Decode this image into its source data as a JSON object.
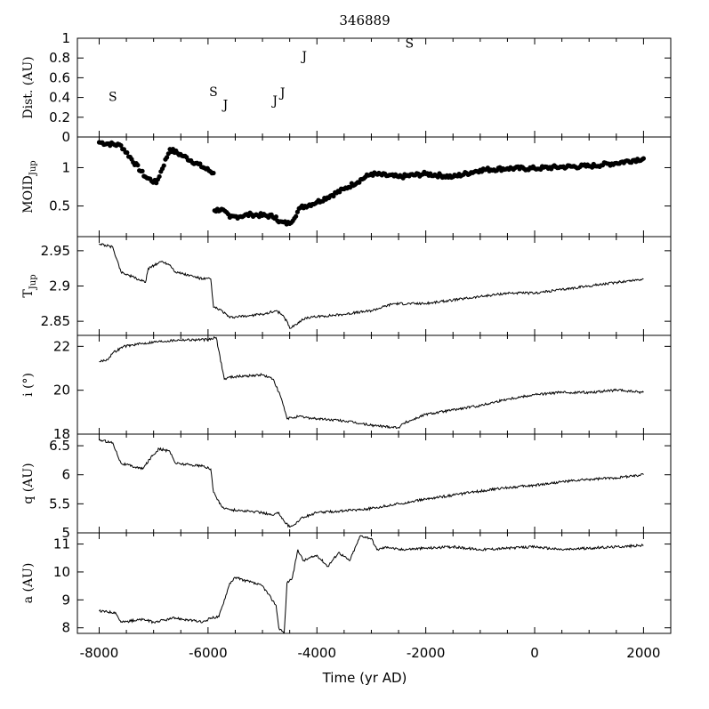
{
  "chart_data": {
    "type": "line",
    "title": "346889",
    "xlabel": "Time (yr AD)",
    "xlim": [
      -8400,
      2500
    ],
    "xticks": [
      -8000,
      -6000,
      -4000,
      -2000,
      0,
      2000
    ],
    "xtick_labels": [
      "-8000",
      "-6000",
      "-4000",
      "-2000",
      "0",
      "2000"
    ],
    "panels": [
      {
        "id": "dist",
        "ylabel": "Dist. (AU)",
        "kind": "encounters",
        "ylim": [
          0,
          1
        ],
        "yticks": [
          0,
          0.2,
          0.4,
          0.6,
          0.8,
          1
        ],
        "ytick_labels": [
          "0",
          "0.2",
          "0.4",
          "0.6",
          "0.8",
          "1"
        ],
        "encounters": [
          {
            "label": "S",
            "x": -7750,
            "y": 0.41
          },
          {
            "label": "S",
            "x": -5900,
            "y": 0.46
          },
          {
            "label": "J",
            "x": -5680,
            "y": 0.33
          },
          {
            "label": "J",
            "x": -4770,
            "y": 0.37
          },
          {
            "label": "J",
            "x": -4630,
            "y": 0.45
          },
          {
            "label": "J",
            "x": -4230,
            "y": 0.82
          },
          {
            "label": "S",
            "x": -2300,
            "y": 0.95
          }
        ]
      },
      {
        "id": "moid",
        "ylabel": "MOID",
        "ylabel_sub": "Jup",
        "kind": "scatter",
        "ylim": [
          0.1,
          1.4
        ],
        "yticks": [
          0.5,
          1
        ],
        "ytick_labels": [
          "0.5",
          "1"
        ],
        "x": [
          -8000,
          -7600,
          -7150,
          -6950,
          -6700,
          -6450,
          -5900,
          -5880,
          -5750,
          -5600,
          -5200,
          -4750,
          -4700,
          -4500,
          -4300,
          -4000,
          -3500,
          -3000,
          -2500,
          -2000,
          -1500,
          -1000,
          -500,
          0,
          500,
          1000,
          1500,
          2000
        ],
        "y": [
          1.33,
          1.29,
          0.88,
          0.8,
          1.24,
          1.15,
          0.93,
          0.44,
          0.46,
          0.35,
          0.39,
          0.36,
          0.29,
          0.27,
          0.48,
          0.55,
          0.72,
          0.92,
          0.88,
          0.92,
          0.88,
          0.97,
          0.99,
          0.99,
          1.01,
          1.02,
          1.06,
          1.12
        ]
      },
      {
        "id": "tjup",
        "ylabel": "T",
        "ylabel_sub": "Jup",
        "kind": "line",
        "ylim": [
          2.83,
          2.97
        ],
        "yticks": [
          2.85,
          2.9,
          2.95
        ],
        "ytick_labels": [
          "2.85",
          "2.9",
          "2.95"
        ],
        "x": [
          -8000,
          -7750,
          -7600,
          -7150,
          -7100,
          -6850,
          -6700,
          -6600,
          -6100,
          -5950,
          -5900,
          -5750,
          -5600,
          -5000,
          -4750,
          -4650,
          -4550,
          -4500,
          -4200,
          -3500,
          -3000,
          -2600,
          -2000,
          -1500,
          -1000,
          -500,
          0,
          500,
          1000,
          1500,
          2000
        ],
        "y": [
          2.96,
          2.955,
          2.92,
          2.905,
          2.925,
          2.935,
          2.93,
          2.92,
          2.91,
          2.91,
          2.87,
          2.865,
          2.855,
          2.86,
          2.865,
          2.86,
          2.85,
          2.84,
          2.855,
          2.86,
          2.865,
          2.875,
          2.875,
          2.88,
          2.885,
          2.89,
          2.89,
          2.895,
          2.9,
          2.905,
          2.91
        ]
      },
      {
        "id": "incl",
        "ylabel": "i (°)",
        "kind": "line",
        "ylim": [
          18,
          22.5
        ],
        "yticks": [
          18,
          20,
          22
        ],
        "ytick_labels": [
          "18",
          "20",
          "22"
        ],
        "x": [
          -8000,
          -7850,
          -7750,
          -7550,
          -7000,
          -6500,
          -6000,
          -5850,
          -5700,
          -5600,
          -5000,
          -4800,
          -4650,
          -4550,
          -4350,
          -4000,
          -3500,
          -3000,
          -2500,
          -2400,
          -2000,
          -1500,
          -1000,
          -500,
          0,
          500,
          1000,
          1500,
          2000
        ],
        "y": [
          21.3,
          21.4,
          21.7,
          22.0,
          22.2,
          22.3,
          22.3,
          22.4,
          20.5,
          20.6,
          20.7,
          20.5,
          19.6,
          18.7,
          18.8,
          18.7,
          18.6,
          18.4,
          18.3,
          18.5,
          18.9,
          19.1,
          19.3,
          19.6,
          19.8,
          19.9,
          19.9,
          20.0,
          19.9
        ]
      },
      {
        "id": "q",
        "ylabel": "q (AU)",
        "kind": "line",
        "ylim": [
          5.0,
          6.7
        ],
        "yticks": [
          5,
          5.5,
          6,
          6.5
        ],
        "ytick_labels": [
          "5",
          "5.5",
          "6",
          "6.5"
        ],
        "x": [
          -8000,
          -7750,
          -7600,
          -7200,
          -7050,
          -6900,
          -6700,
          -6600,
          -6100,
          -5950,
          -5900,
          -5750,
          -5600,
          -5000,
          -4800,
          -4700,
          -4600,
          -4500,
          -4400,
          -4300,
          -4000,
          -3500,
          -3000,
          -2500,
          -2000,
          -1500,
          -1000,
          -500,
          0,
          500,
          1000,
          1500,
          2000
        ],
        "y": [
          6.6,
          6.55,
          6.2,
          6.1,
          6.3,
          6.45,
          6.4,
          6.2,
          6.15,
          6.1,
          5.7,
          5.45,
          5.4,
          5.35,
          5.3,
          5.35,
          5.2,
          5.1,
          5.15,
          5.25,
          5.35,
          5.38,
          5.42,
          5.5,
          5.58,
          5.65,
          5.72,
          5.78,
          5.82,
          5.88,
          5.92,
          5.95,
          6.0
        ]
      },
      {
        "id": "a",
        "ylabel": "a (AU)",
        "kind": "line",
        "ylim": [
          7.8,
          11.4
        ],
        "yticks": [
          8,
          9,
          10,
          11
        ],
        "ytick_labels": [
          "8",
          "9",
          "10",
          "11"
        ],
        "x": [
          -8000,
          -7700,
          -7600,
          -7200,
          -7000,
          -6600,
          -6100,
          -6000,
          -5950,
          -5800,
          -5600,
          -5500,
          -5000,
          -4750,
          -4700,
          -4600,
          -4550,
          -4450,
          -4350,
          -4250,
          -4000,
          -3800,
          -3600,
          -3400,
          -3200,
          -3000,
          -2900,
          -2700,
          -2500,
          -2000,
          -1500,
          -1000,
          -500,
          0,
          500,
          1000,
          1500,
          2000
        ],
        "y": [
          8.6,
          8.55,
          8.2,
          8.3,
          8.2,
          8.35,
          8.2,
          8.3,
          8.35,
          8.4,
          9.6,
          9.8,
          9.5,
          8.8,
          8.0,
          7.8,
          9.6,
          9.8,
          10.8,
          10.4,
          10.6,
          10.2,
          10.7,
          10.4,
          11.3,
          11.2,
          10.8,
          10.9,
          10.8,
          10.85,
          10.9,
          10.8,
          10.85,
          10.9,
          10.8,
          10.85,
          10.9,
          10.95
        ]
      }
    ]
  }
}
